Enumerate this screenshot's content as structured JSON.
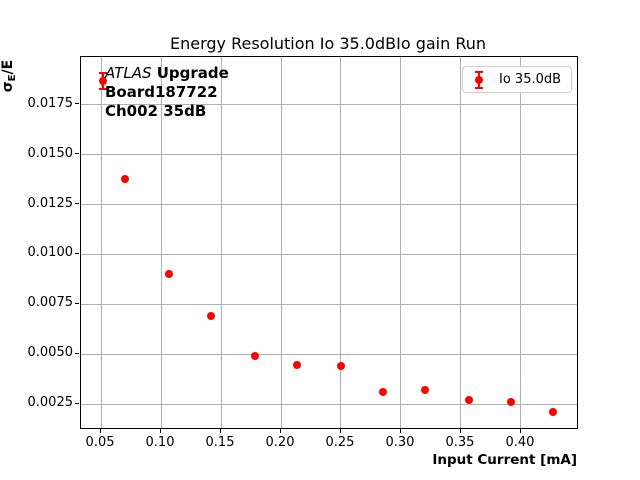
{
  "figure": {
    "title": "Energy Resolution Io 35.0dBIo gain Run",
    "xlabel": "Input Current [mA]",
    "ylabel_sigma": "σ",
    "ylabel_sub": "E",
    "ylabel_rest": "/E"
  },
  "annotation": {
    "line1_italic": "ATLAS",
    "line1_rest": " Upgrade",
    "line2": "Board187722",
    "line3": "Ch002 35dB"
  },
  "legend": {
    "label": "Io 35.0dB",
    "position": "upper right"
  },
  "colors": {
    "marker": "#ff0000",
    "grid": "#b0b0b0",
    "spine": "#000000",
    "legend_border": "#cccccc",
    "background": "#ffffff"
  },
  "chart_data": {
    "type": "scatter",
    "title": "Energy Resolution Io 35.0dBIo gain Run",
    "xlabel": "Input Current [mA]",
    "ylabel": "σ_E/E",
    "series": [
      {
        "name": "Io 35.0dB",
        "marker": "circle",
        "color": "#ff0000",
        "x": [
          0.052,
          0.07,
          0.107,
          0.142,
          0.178,
          0.213,
          0.25,
          0.285,
          0.32,
          0.357,
          0.392,
          0.427
        ],
        "y": [
          0.0187,
          0.0138,
          0.009,
          0.0069,
          0.0049,
          0.00445,
          0.0044,
          0.0031,
          0.0032,
          0.0027,
          0.0026,
          0.0021
        ],
        "yerr": [
          0.0004,
          0.00015,
          8e-05,
          8e-05,
          8e-05,
          8e-05,
          8e-05,
          8e-05,
          8e-05,
          8e-05,
          8e-05,
          8e-05
        ]
      }
    ],
    "xlim": [
      0.0333,
      0.4467
    ],
    "ylim": [
      0.0013,
      0.0199
    ],
    "xticks": [
      0.05,
      0.1,
      0.15,
      0.2,
      0.25,
      0.3,
      0.35,
      0.4
    ],
    "xtick_labels": [
      "0.05",
      "0.10",
      "0.15",
      "0.20",
      "0.25",
      "0.30",
      "0.35",
      "0.40"
    ],
    "yticks": [
      0.0025,
      0.005,
      0.0075,
      0.01,
      0.0125,
      0.015,
      0.0175
    ],
    "ytick_labels": [
      "0.0025",
      "0.0050",
      "0.0075",
      "0.0100",
      "0.0125",
      "0.0150",
      "0.0175"
    ],
    "grid": true,
    "legend_position": "upper right"
  }
}
